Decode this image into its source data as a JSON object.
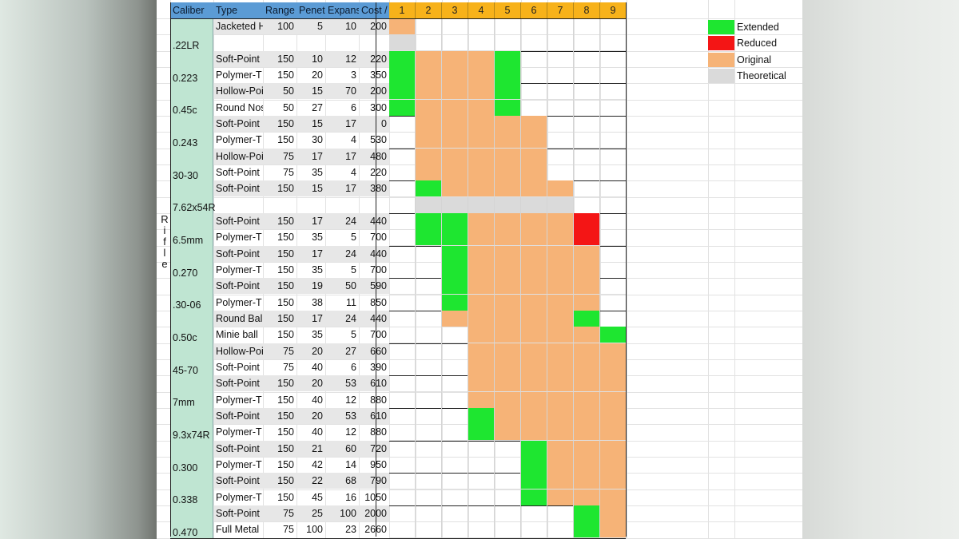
{
  "header": {
    "caliber": "Caliber",
    "type": "Type",
    "range": "Range",
    "penetration": "Penet",
    "expansion": "Expans",
    "cost": "Cost /",
    "tiers": [
      "1",
      "2",
      "3",
      "4",
      "5",
      "6",
      "7",
      "8",
      "9"
    ]
  },
  "category_label": "Rifle",
  "groups": [
    {
      "caliber": ".22LR",
      "rows": [
        {
          "type": "Jacketed H",
          "range": "100",
          "pen": "5",
          "exp": "10",
          "cost": "200",
          "bars": [
            "O",
            "",
            "",
            "",
            "",
            "",
            "",
            "",
            ""
          ]
        },
        {
          "type": "",
          "range": "",
          "pen": "",
          "exp": "",
          "cost": "",
          "bars": [
            "T",
            "",
            "",
            "",
            "",
            "",
            "",
            "",
            ""
          ]
        }
      ]
    },
    {
      "caliber": "0.223",
      "rows": [
        {
          "type": "Soft-Point",
          "range": "150",
          "pen": "10",
          "exp": "12",
          "cost": "220",
          "bars": [
            "E",
            "O",
            "O",
            "O",
            "E",
            "",
            "",
            "",
            ""
          ]
        },
        {
          "type": "Polymer-T",
          "range": "150",
          "pen": "20",
          "exp": "3",
          "cost": "350",
          "bars": [
            "E",
            "O",
            "O",
            "O",
            "E",
            "",
            "",
            "",
            ""
          ]
        }
      ]
    },
    {
      "caliber": "0.45c",
      "rows": [
        {
          "type": "Hollow-Poi",
          "range": "50",
          "pen": "15",
          "exp": "70",
          "cost": "200",
          "bars": [
            "E",
            "O",
            "O",
            "O",
            "E",
            "",
            "",
            "",
            ""
          ]
        },
        {
          "type": "Round Nos",
          "range": "50",
          "pen": "27",
          "exp": "6",
          "cost": "300",
          "bars": [
            "E",
            "O",
            "O",
            "O",
            "E",
            "",
            "",
            "",
            ""
          ]
        }
      ]
    },
    {
      "caliber": "0.243",
      "rows": [
        {
          "type": "Soft-Point",
          "range": "150",
          "pen": "15",
          "exp": "17",
          "cost": "0",
          "bars": [
            "",
            "O",
            "O",
            "O",
            "O",
            "O",
            "",
            "",
            ""
          ]
        },
        {
          "type": "Polymer-T",
          "range": "150",
          "pen": "30",
          "exp": "4",
          "cost": "530",
          "bars": [
            "",
            "O",
            "O",
            "O",
            "O",
            "O",
            "",
            "",
            ""
          ]
        }
      ]
    },
    {
      "caliber": "30-30",
      "rows": [
        {
          "type": "Hollow-Poi",
          "range": "75",
          "pen": "17",
          "exp": "17",
          "cost": "480",
          "bars": [
            "",
            "O",
            "O",
            "O",
            "O",
            "O",
            "",
            "",
            ""
          ]
        },
        {
          "type": "Soft-Point",
          "range": "75",
          "pen": "35",
          "exp": "4",
          "cost": "220",
          "bars": [
            "",
            "O",
            "O",
            "O",
            "O",
            "O",
            "",
            "",
            ""
          ]
        }
      ]
    },
    {
      "caliber": "7.62x54R",
      "rows": [
        {
          "type": "Soft-Point",
          "range": "150",
          "pen": "15",
          "exp": "17",
          "cost": "380",
          "bars": [
            "",
            "E",
            "O",
            "O",
            "O",
            "O",
            "O",
            "",
            ""
          ]
        },
        {
          "type": "",
          "range": "",
          "pen": "",
          "exp": "",
          "cost": "",
          "bars": [
            "",
            "T",
            "T",
            "T",
            "T",
            "T",
            "T",
            "",
            ""
          ]
        }
      ]
    },
    {
      "caliber": "6.5mm",
      "rows": [
        {
          "type": "Soft-Point",
          "range": "150",
          "pen": "17",
          "exp": "24",
          "cost": "440",
          "bars": [
            "",
            "E",
            "E",
            "O",
            "O",
            "O",
            "O",
            "R",
            ""
          ]
        },
        {
          "type": "Polymer-T",
          "range": "150",
          "pen": "35",
          "exp": "5",
          "cost": "700",
          "bars": [
            "",
            "E",
            "E",
            "O",
            "O",
            "O",
            "O",
            "R",
            ""
          ]
        }
      ]
    },
    {
      "caliber": "0.270",
      "rows": [
        {
          "type": "Soft-Point",
          "range": "150",
          "pen": "17",
          "exp": "24",
          "cost": "440",
          "bars": [
            "",
            "",
            "E",
            "O",
            "O",
            "O",
            "O",
            "O",
            ""
          ]
        },
        {
          "type": "Polymer-T",
          "range": "150",
          "pen": "35",
          "exp": "5",
          "cost": "700",
          "bars": [
            "",
            "",
            "E",
            "O",
            "O",
            "O",
            "O",
            "O",
            ""
          ]
        }
      ]
    },
    {
      "caliber": ".30-06",
      "rows": [
        {
          "type": "Soft-Point",
          "range": "150",
          "pen": "19",
          "exp": "50",
          "cost": "590",
          "bars": [
            "",
            "",
            "E",
            "O",
            "O",
            "O",
            "O",
            "O",
            ""
          ]
        },
        {
          "type": "Polymer-T",
          "range": "150",
          "pen": "38",
          "exp": "11",
          "cost": "850",
          "bars": [
            "",
            "",
            "E",
            "O",
            "O",
            "O",
            "O",
            "O",
            ""
          ]
        }
      ]
    },
    {
      "caliber": "0.50c",
      "rows": [
        {
          "type": "Round Bal",
          "range": "150",
          "pen": "17",
          "exp": "24",
          "cost": "440",
          "bars": [
            "",
            "",
            "O",
            "O",
            "O",
            "O",
            "O",
            "E",
            ""
          ]
        },
        {
          "type": "Minie ball",
          "range": "150",
          "pen": "35",
          "exp": "5",
          "cost": "700",
          "bars": [
            "",
            "",
            "",
            "O",
            "O",
            "O",
            "O",
            "O",
            "E"
          ]
        }
      ]
    },
    {
      "caliber": "45-70",
      "rows": [
        {
          "type": "Hollow-Poi",
          "range": "75",
          "pen": "20",
          "exp": "27",
          "cost": "660",
          "bars": [
            "",
            "",
            "",
            "O",
            "O",
            "O",
            "O",
            "O",
            "O"
          ]
        },
        {
          "type": "Soft-Point",
          "range": "75",
          "pen": "40",
          "exp": "6",
          "cost": "390",
          "bars": [
            "",
            "",
            "",
            "O",
            "O",
            "O",
            "O",
            "O",
            "O"
          ]
        }
      ]
    },
    {
      "caliber": "7mm",
      "rows": [
        {
          "type": "Soft-Point",
          "range": "150",
          "pen": "20",
          "exp": "53",
          "cost": "610",
          "bars": [
            "",
            "",
            "",
            "O",
            "O",
            "O",
            "O",
            "O",
            "O"
          ]
        },
        {
          "type": "Polymer-T",
          "range": "150",
          "pen": "40",
          "exp": "12",
          "cost": "880",
          "bars": [
            "",
            "",
            "",
            "O",
            "O",
            "O",
            "O",
            "O",
            "O"
          ]
        }
      ]
    },
    {
      "caliber": "9.3x74R",
      "rows": [
        {
          "type": "Soft-Point",
          "range": "150",
          "pen": "20",
          "exp": "53",
          "cost": "610",
          "bars": [
            "",
            "",
            "",
            "E",
            "O",
            "O",
            "O",
            "O",
            "O"
          ]
        },
        {
          "type": "Polymer-T",
          "range": "150",
          "pen": "40",
          "exp": "12",
          "cost": "880",
          "bars": [
            "",
            "",
            "",
            "E",
            "O",
            "O",
            "O",
            "O",
            "O"
          ]
        }
      ]
    },
    {
      "caliber": "0.300",
      "rows": [
        {
          "type": "Soft-Point",
          "range": "150",
          "pen": "21",
          "exp": "60",
          "cost": "720",
          "bars": [
            "",
            "",
            "",
            "",
            "",
            "E",
            "O",
            "O",
            "O"
          ]
        },
        {
          "type": "Polymer-T",
          "range": "150",
          "pen": "42",
          "exp": "14",
          "cost": "950",
          "bars": [
            "",
            "",
            "",
            "",
            "",
            "E",
            "O",
            "O",
            "O"
          ]
        }
      ]
    },
    {
      "caliber": "0.338",
      "rows": [
        {
          "type": "Soft-Point",
          "range": "150",
          "pen": "22",
          "exp": "68",
          "cost": "790",
          "bars": [
            "",
            "",
            "",
            "",
            "",
            "E",
            "O",
            "O",
            "O"
          ]
        },
        {
          "type": "Polymer-T",
          "range": "150",
          "pen": "45",
          "exp": "16",
          "cost": "1050",
          "bars": [
            "",
            "",
            "",
            "",
            "",
            "E",
            "O",
            "O",
            "O"
          ]
        }
      ]
    },
    {
      "caliber": "0.470",
      "rows": [
        {
          "type": "Soft-Point",
          "range": "75",
          "pen": "25",
          "exp": "100",
          "cost": "2000",
          "bars": [
            "",
            "",
            "",
            "",
            "",
            "",
            "",
            "E",
            "O"
          ]
        },
        {
          "type": "Full Metal",
          "range": "75",
          "pen": "100",
          "exp": "23",
          "cost": "2660",
          "bars": [
            "",
            "",
            "",
            "",
            "",
            "",
            "",
            "E",
            "O"
          ]
        }
      ]
    }
  ],
  "legend": [
    {
      "label": "Extended",
      "color": "#1ee630"
    },
    {
      "label": "Reduced",
      "color": "#f41515"
    },
    {
      "label": "Original",
      "color": "#f6b377"
    },
    {
      "label": "Theoretical",
      "color": "#dadada"
    }
  ],
  "bar_colors": {
    "E": "#1ee630",
    "R": "#f41515",
    "O": "#f6b377",
    "T": "#dadada"
  }
}
